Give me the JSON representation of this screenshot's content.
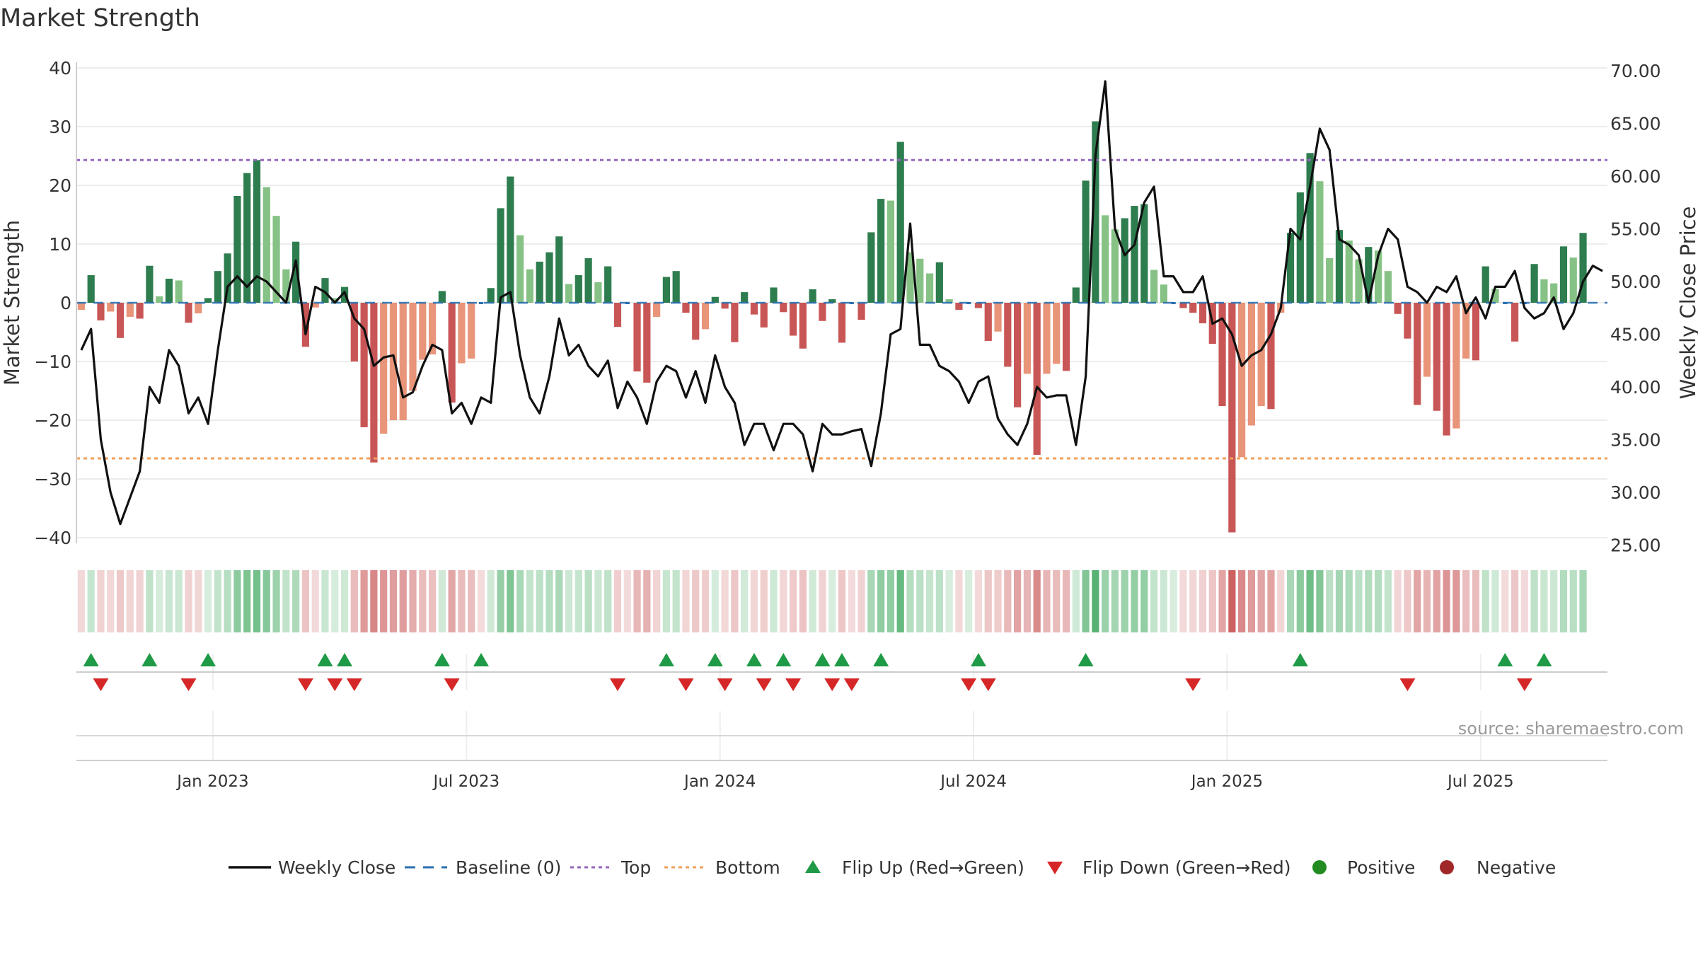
{
  "chart_data": {
    "type": "bar+line",
    "title": "Market Strength",
    "ylabel_left": "Market Strength",
    "ylabel_right": "Weekly Close Price",
    "ylim_left": [
      -45,
      42
    ],
    "ylim_right": [
      23.0,
      71.5
    ],
    "yticks_left": [
      "40",
      "30",
      "20",
      "10",
      "0",
      "−10",
      "−20",
      "−30",
      "−40"
    ],
    "yticks_left_values": [
      40,
      30,
      20,
      10,
      0,
      -10,
      -20,
      -30,
      -40
    ],
    "yticks_right": [
      "70.00",
      "65.00",
      "60.00",
      "55.00",
      "50.00",
      "45.00",
      "40.00",
      "35.00",
      "30.00",
      "25.00"
    ],
    "yticks_right_values": [
      70,
      65,
      60,
      55,
      50,
      45,
      40,
      35,
      30,
      25
    ],
    "xtick_labels": [
      "Jan 2023",
      "Jul 2023",
      "Jan 2024",
      "Jul 2024",
      "Jan 2025",
      "Jul 2025"
    ],
    "xtick_weeks": [
      14,
      40,
      66,
      92,
      118,
      144
    ],
    "top_level": 24.3,
    "bottom_level": -26.5,
    "weeks": 157,
    "strength": [
      -1.2,
      4.7,
      -3.0,
      -1.5,
      -6.0,
      -2.4,
      -2.7,
      6.3,
      1.1,
      4.1,
      3.8,
      -3.4,
      -1.8,
      0.8,
      5.4,
      8.4,
      18.2,
      22.1,
      24.3,
      19.7,
      14.8,
      5.7,
      10.4,
      -7.5,
      -0.8,
      4.2,
      0.8,
      2.7,
      -10.0,
      -21.2,
      -27.2,
      -22.3,
      -20.0,
      -20.0,
      -15.0,
      -9.7,
      -8.8,
      2.0,
      -17.0,
      -10.3,
      -9.5,
      -0.3,
      2.5,
      16.1,
      21.5,
      11.5,
      5.7,
      7.0,
      8.6,
      11.3,
      3.2,
      4.7,
      7.6,
      3.5,
      6.2,
      -4.1,
      -0.4,
      -11.7,
      -13.6,
      -2.4,
      4.4,
      5.4,
      -1.7,
      -6.3,
      -4.5,
      1.0,
      -1.0,
      -6.7,
      1.8,
      -2.0,
      -4.2,
      2.6,
      -1.6,
      -5.6,
      -7.8,
      2.3,
      -3.1,
      0.6,
      -6.8,
      -0.3,
      -2.9,
      12.0,
      17.7,
      17.4,
      27.4,
      8.6,
      7.5,
      5.0,
      6.9,
      0.6,
      -1.2,
      0.3,
      -0.9,
      -6.5,
      -4.9,
      -10.9,
      -17.8,
      -12.1,
      -25.9,
      -12.1,
      -10.4,
      -11.6,
      2.6,
      20.8,
      30.9,
      14.9,
      12.5,
      14.4,
      16.5,
      16.8,
      5.6,
      3.1,
      0.4,
      -0.9,
      -1.7,
      -3.5,
      -7.0,
      -17.6,
      -39.1,
      -26.3,
      -20.9,
      -17.6,
      -18.1,
      -1.7,
      11.9,
      18.8,
      25.5,
      20.7,
      7.6,
      12.4,
      10.6,
      7.4,
      9.5,
      8.9,
      5.4,
      -1.9,
      -6.1,
      -17.4,
      -12.6,
      -18.4,
      -22.6,
      -21.4,
      -9.5,
      -9.8,
      6.2,
      2.4,
      -0.2,
      -6.6,
      -0.4,
      6.6,
      4.0,
      3.3,
      9.6,
      7.7,
      11.9
    ],
    "close": [
      43.5,
      45.5,
      35.0,
      30.0,
      27.0,
      29.5,
      32.0,
      40.0,
      38.5,
      43.5,
      42.0,
      37.5,
      39.0,
      36.5,
      43.5,
      49.5,
      50.5,
      49.5,
      50.5,
      50.0,
      49.0,
      48.0,
      52.0,
      45.0,
      49.5,
      49.0,
      48.0,
      49.0,
      46.5,
      45.5,
      42.0,
      42.8,
      43.0,
      39.0,
      39.5,
      42.0,
      44.0,
      43.5,
      37.5,
      38.5,
      36.5,
      39.0,
      38.5,
      48.5,
      49.0,
      43.0,
      39.0,
      37.5,
      41.0,
      46.5,
      43.0,
      44.0,
      42.0,
      41.0,
      42.5,
      38.0,
      40.5,
      39.0,
      36.5,
      40.5,
      42.0,
      41.5,
      39.0,
      41.5,
      38.5,
      43.0,
      40.0,
      38.5,
      34.5,
      36.5,
      36.5,
      34.0,
      36.5,
      36.5,
      35.5,
      32.0,
      36.5,
      35.5,
      35.5,
      35.8,
      36.0,
      32.5,
      37.5,
      45.0,
      45.5,
      55.5,
      44.0,
      44.0,
      42.0,
      41.5,
      40.5,
      38.5,
      40.5,
      41.0,
      37.0,
      35.5,
      34.5,
      36.5,
      40.0,
      39.0,
      39.2,
      39.2,
      34.5,
      41.0,
      62.0,
      69.0,
      55.0,
      52.5,
      53.5,
      57.5,
      59.0,
      50.5,
      50.5,
      49.0,
      49.0,
      50.5,
      46.0,
      46.5,
      45.0,
      42.0,
      43.0,
      43.5,
      45.0,
      47.5,
      55.0,
      54.0,
      59.0,
      64.5,
      62.5,
      54.0,
      53.5,
      52.5,
      48.0,
      52.5,
      55.0,
      54.0,
      49.5,
      49.0,
      48.0,
      49.5,
      49.0,
      50.5,
      47.0,
      48.5,
      46.5,
      49.5,
      49.5,
      51.0,
      47.5,
      46.5,
      47.0,
      48.5,
      45.5,
      47.0,
      50.0,
      51.5,
      51.0
    ],
    "flip_up_weeks": [
      1,
      7,
      13,
      25,
      27,
      37,
      41,
      60,
      65,
      69,
      72,
      76,
      78,
      82,
      92,
      103,
      125,
      146,
      150
    ],
    "flip_down_weeks": [
      2,
      11,
      23,
      26,
      28,
      38,
      55,
      62,
      66,
      70,
      73,
      77,
      79,
      91,
      93,
      114,
      136,
      148
    ],
    "legend": [
      "Weekly Close",
      "Baseline (0)",
      "Top",
      "Bottom",
      "Flip Up (Red→Green)",
      "Flip Down (Green→Red)",
      "Positive",
      "Negative"
    ],
    "colors": {
      "pos_dark": "#2e7d4f",
      "pos_light": "#86c285",
      "neg_dark": "#c95656",
      "neg_light": "#e8957a",
      "line": "#111111",
      "baseline": "#2a6fb0",
      "top": "#9467bd",
      "bottom": "#f0a05a",
      "flip_up": "#1f9a46",
      "flip_down": "#d62728",
      "legend_positive": "#228b22",
      "legend_negative": "#a02828"
    }
  },
  "source_note": "source: sharemaestro.com"
}
